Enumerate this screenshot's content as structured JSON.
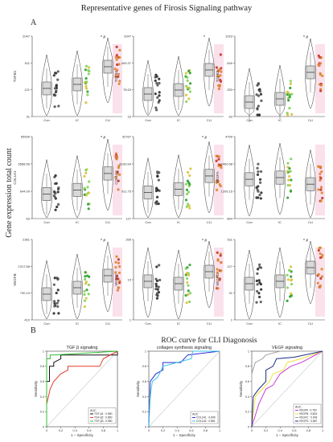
{
  "figure": {
    "title": "Representative genes of Firosis Signaling pathway",
    "panel_a_label": "A",
    "panel_b_label": "B",
    "y_axis_label": "Gene expression total count",
    "roc_title": "ROC curve for CLI Diagonosis"
  },
  "colors": {
    "con": "#2a2a2a",
    "ic_light": "#7fd35a",
    "ic_dark": "#2e9e2e",
    "cli_light": "#d9c23a",
    "cli_orange": "#d9892a",
    "cli_red": "#c0392b",
    "pink_bg": "#f6c8dc",
    "box": "#d9d9d9"
  },
  "chart_data": [
    {
      "type": "violin",
      "title": "",
      "ylabel": "TGFB1",
      "categories": [
        "Con",
        "IC",
        "CLI"
      ],
      "y_ticks": [
        "31",
        "121",
        "511",
        "2047"
      ],
      "medians": [
        0.35,
        0.4,
        0.62
      ],
      "annotation": "* #"
    },
    {
      "type": "violin",
      "title": "",
      "ylabel": "TGFB2",
      "categories": [
        "Con",
        "IC",
        "CLI"
      ],
      "y_ticks": [
        "16",
        "78.63",
        "405.37",
        "2047"
      ],
      "medians": [
        0.28,
        0.33,
        0.58
      ],
      "annotation": "*"
    },
    {
      "type": "violin",
      "title": "",
      "ylabel": "TGFB3",
      "categories": [
        "Con",
        "IC",
        "CLI"
      ],
      "y_ticks": [
        "63",
        "253",
        "640",
        "1023"
      ],
      "medians": [
        0.18,
        0.22,
        0.55
      ],
      "annotation": "* #"
    },
    {
      "type": "violin",
      "title": "",
      "ylabel": "COL1A1",
      "categories": [
        "Con",
        "IC",
        "CLI"
      ],
      "y_ticks": [
        "63",
        "644.09",
        "6588.56",
        "65535"
      ],
      "medians": [
        0.3,
        0.35,
        0.55
      ],
      "annotation": "* #"
    },
    {
      "type": "violin",
      "title": "",
      "ylabel": "COL1A2",
      "categories": [
        "Con",
        "IC",
        "CLI"
      ],
      "y_ticks": [
        "127",
        "911.75",
        "6199.64",
        "32767"
      ],
      "medians": [
        0.32,
        0.36,
        0.52
      ],
      "annotation": "* #"
    },
    {
      "type": "violin",
      "title": "",
      "ylabel": "VEGFA",
      "categories": [
        "Con",
        "IC",
        "CLI"
      ],
      "y_ticks": [
        "804",
        "1209.15",
        "2400.58",
        "4799"
      ],
      "medians": [
        0.48,
        0.5,
        0.42
      ],
      "annotation": ""
    },
    {
      "type": "violin",
      "title": "",
      "ylabel": "VEGFB",
      "categories": [
        "Con",
        "IC",
        "CLI"
      ],
      "y_ticks": [
        "410",
        "730.19",
        "1317.68",
        "2361"
      ],
      "medians": [
        0.32,
        0.4,
        0.55
      ],
      "annotation": "* #"
    },
    {
      "type": "violin",
      "title": "",
      "ylabel": "VEGFC",
      "categories": [
        "Con",
        "IC",
        "CLI"
      ],
      "y_ticks": [
        "1",
        "15",
        "255"
      ],
      "medians": [
        0.48,
        0.45,
        0.6
      ],
      "annotation": "* #"
    },
    {
      "type": "violin",
      "title": "",
      "ylabel": "VEGFD",
      "categories": [
        "Con",
        "IC",
        "CLI"
      ],
      "y_ticks": [
        "1",
        "31",
        "127",
        "511"
      ],
      "medians": [
        0.45,
        0.48,
        0.65
      ],
      "annotation": "* #"
    },
    {
      "type": "line",
      "title": "TGF β signaling",
      "xlabel": "1 − Specificity",
      "ylabel": "Sensitivity",
      "xlim": [
        0,
        1
      ],
      "ylim": [
        0,
        1
      ],
      "x_ticks": [
        "0",
        "0.2",
        "0.4",
        "0.6",
        "0.8",
        "1"
      ],
      "y_ticks": [
        "0",
        "0.2",
        "0.4",
        "0.6",
        "0.8",
        "1"
      ],
      "legend_title": "AUC",
      "series": [
        {
          "name": "TGF-β1 : 0.960",
          "color": "#111111",
          "points": [
            [
              0,
              0
            ],
            [
              0,
              0.6
            ],
            [
              0.04,
              0.6
            ],
            [
              0.04,
              0.8
            ],
            [
              0.1,
              0.8
            ],
            [
              0.1,
              0.85
            ],
            [
              0.2,
              0.9
            ],
            [
              0.2,
              0.95
            ],
            [
              1,
              0.95
            ],
            [
              1,
              1
            ]
          ]
        },
        {
          "name": "TGF-β2 : 0.860",
          "color": "#e23b2e",
          "points": [
            [
              0,
              0
            ],
            [
              0,
              0.3
            ],
            [
              0.05,
              0.5
            ],
            [
              0.1,
              0.6
            ],
            [
              0.2,
              0.7
            ],
            [
              0.3,
              0.75
            ],
            [
              0.3,
              0.8
            ],
            [
              0.75,
              0.8
            ],
            [
              0.8,
              0.9
            ],
            [
              1,
              1
            ]
          ]
        },
        {
          "name": "TGF-β3 : 0.980",
          "color": "#2fbf2f",
          "points": [
            [
              0,
              0
            ],
            [
              0,
              0.9
            ],
            [
              0.05,
              0.9
            ],
            [
              0.05,
              0.95
            ],
            [
              0.1,
              0.95
            ],
            [
              1,
              1
            ]
          ]
        }
      ]
    },
    {
      "type": "line",
      "title": "collagen synthesis signaling",
      "xlabel": "1 − Specificity",
      "ylabel": "Sensitivity",
      "xlim": [
        0,
        1
      ],
      "ylim": [
        0,
        1
      ],
      "x_ticks": [
        "0",
        "0.2",
        "0.4",
        "0.6",
        "0.8",
        "1"
      ],
      "y_ticks": [
        "0",
        "0.2",
        "0.4",
        "0.6",
        "0.8",
        "1"
      ],
      "legend_title": "AUC",
      "series": [
        {
          "name": "COL1A1 : 0.849",
          "color": "#2b2bd6",
          "points": [
            [
              0,
              0
            ],
            [
              0.02,
              0.6
            ],
            [
              0.1,
              0.7
            ],
            [
              0.2,
              0.75
            ],
            [
              0.2,
              0.85
            ],
            [
              0.45,
              0.85
            ],
            [
              0.55,
              0.95
            ],
            [
              1,
              1
            ]
          ]
        },
        {
          "name": "COL1A2 : 0.881",
          "color": "#3cc3e6",
          "points": [
            [
              0,
              0
            ],
            [
              0.02,
              0.4
            ],
            [
              0.05,
              0.6
            ],
            [
              0.12,
              0.65
            ],
            [
              0.15,
              0.7
            ],
            [
              0.2,
              0.8
            ],
            [
              0.4,
              0.85
            ],
            [
              0.6,
              0.9
            ],
            [
              0.62,
              1
            ],
            [
              1,
              1
            ]
          ]
        }
      ]
    },
    {
      "type": "line",
      "title": "VEGF signaling",
      "xlabel": "1 − Specificity",
      "ylabel": "Sensitivity",
      "xlim": [
        0,
        1
      ],
      "ylim": [
        0,
        1
      ],
      "x_ticks": [
        "0",
        "0.2",
        "0.4",
        "0.6",
        "0.8",
        "1"
      ],
      "y_ticks": [
        "0",
        "0.2",
        "0.4",
        "0.6",
        "0.8",
        "1"
      ],
      "legend_title": "AUC",
      "series": [
        {
          "name": "VEGFA : 0.762",
          "color": "#c83cd6",
          "points": [
            [
              0,
              0
            ],
            [
              0.1,
              0.3
            ],
            [
              0.2,
              0.5
            ],
            [
              0.3,
              0.55
            ],
            [
              0.4,
              0.7
            ],
            [
              0.55,
              0.8
            ],
            [
              0.7,
              0.85
            ],
            [
              1,
              1
            ]
          ]
        },
        {
          "name": "VEGFB : 0.834",
          "color": "#f0e040",
          "points": [
            [
              0,
              0
            ],
            [
              0.05,
              0.4
            ],
            [
              0.15,
              0.5
            ],
            [
              0.25,
              0.6
            ],
            [
              0.3,
              0.7
            ],
            [
              0.45,
              0.75
            ],
            [
              0.5,
              0.85
            ],
            [
              0.7,
              0.9
            ],
            [
              1,
              1
            ]
          ]
        },
        {
          "name": "VEGFC : 0.943",
          "color": "#a0a0a0",
          "points": [
            [
              0,
              0
            ],
            [
              0,
              0.7
            ],
            [
              0.05,
              0.85
            ],
            [
              0.15,
              0.9
            ],
            [
              0.2,
              0.95
            ],
            [
              0.4,
              1
            ],
            [
              1,
              1
            ]
          ]
        },
        {
          "name": "VEGFD : 0.867",
          "color": "#1a2d80",
          "points": [
            [
              0,
              0
            ],
            [
              0.02,
              0.4
            ],
            [
              0.1,
              0.5
            ],
            [
              0.2,
              0.6
            ],
            [
              0.2,
              0.75
            ],
            [
              0.3,
              0.8
            ],
            [
              0.35,
              0.9
            ],
            [
              0.6,
              0.92
            ],
            [
              1,
              1
            ]
          ]
        }
      ]
    }
  ]
}
